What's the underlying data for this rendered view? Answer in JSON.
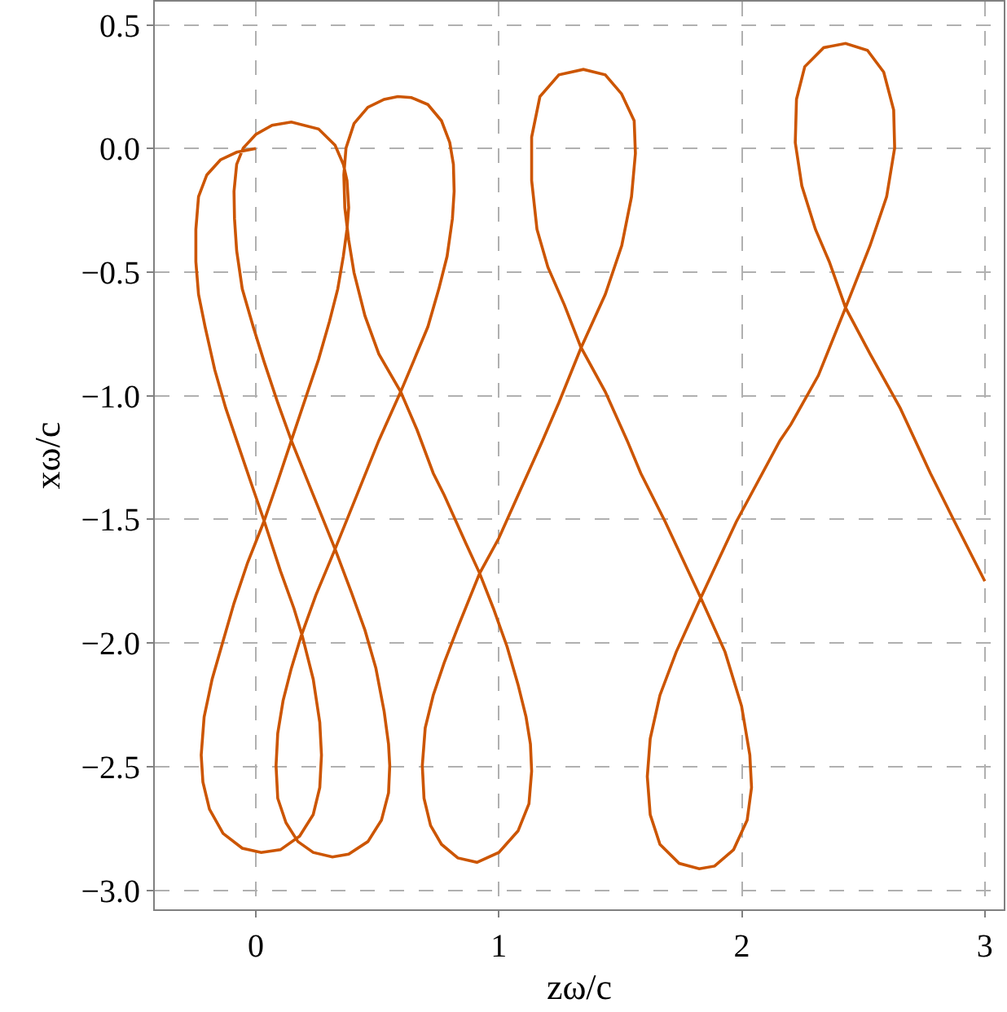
{
  "chart_data": {
    "type": "line",
    "xlabel": "zω/c",
    "ylabel": "xω/c",
    "grid": true,
    "marker": "none",
    "line_style": "solid",
    "xlim": [
      -0.416,
      3.078
    ],
    "ylim": [
      -3.077,
      0.594
    ],
    "xticks": [
      0,
      1,
      2,
      3
    ],
    "yticks": [
      {
        "value": 0.5,
        "label": "0.5"
      },
      {
        "value": 0,
        "label": "0.0"
      },
      {
        "value": -0.5,
        "label": "−0.5"
      },
      {
        "value": -1,
        "label": "−1.0"
      },
      {
        "value": -1.5,
        "label": "−1.5"
      },
      {
        "value": -2,
        "label": "−2.0"
      },
      {
        "value": -2.5,
        "label": "−2.5"
      },
      {
        "value": -3,
        "label": "−3.0"
      }
    ],
    "series": [
      {
        "color": "#cc5500",
        "x": [
          0,
          -0.079,
          -0.146,
          -0.202,
          -0.236,
          -0.247,
          -0.247,
          -0.236,
          -0.209,
          -0.169,
          -0.124,
          -0.079,
          -0.022,
          0.034,
          0.101,
          0.157,
          0.191,
          0.236,
          0.263,
          0.27,
          0.263,
          0.236,
          0.18,
          0.101,
          0.022,
          -0.056,
          -0.135,
          -0.191,
          -0.218,
          -0.225,
          -0.213,
          -0.18,
          -0.135,
          -0.09,
          -0.034,
          0.034,
          0.09,
          0.146,
          0.202,
          0.258,
          0.303,
          0.337,
          0.36,
          0.375,
          0.382,
          0.375,
          0.36,
          0.326,
          0.258,
          0.146,
          0.067,
          0,
          -0.052,
          -0.079,
          -0.09,
          -0.088,
          -0.079,
          -0.056,
          -0.011,
          0.034,
          0.09,
          0.146,
          0.236,
          0.326,
          0.393,
          0.449,
          0.494,
          0.528,
          0.546,
          0.551,
          0.546,
          0.517,
          0.461,
          0.382,
          0.315,
          0.236,
          0.173,
          0.124,
          0.09,
          0.083,
          0.09,
          0.112,
          0.146,
          0.187,
          0.247,
          0.326,
          0.416,
          0.506,
          0.596,
          0.652,
          0.708,
          0.753,
          0.787,
          0.809,
          0.816,
          0.813,
          0.798,
          0.764,
          0.708,
          0.64,
          0.584,
          0.528,
          0.461,
          0.404,
          0.371,
          0.362,
          0.366,
          0.382,
          0.404,
          0.449,
          0.506,
          0.596,
          0.663,
          0.73,
          0.775,
          0.865,
          0.921,
          0.978,
          1.034,
          1.079,
          1.112,
          1.13,
          1.135,
          1.124,
          1.079,
          1.0,
          0.91,
          0.831,
          0.764,
          0.719,
          0.692,
          0.685,
          0.697,
          0.73,
          0.775,
          0.831,
          0.921,
          1.0,
          1.09,
          1.18,
          1.247,
          1.337,
          1.438,
          1.506,
          1.546,
          1.562,
          1.557,
          1.505,
          1.438,
          1.348,
          1.247,
          1.169,
          1.135,
          1.135,
          1.157,
          1.202,
          1.27,
          1.337,
          1.438,
          1.528,
          1.584,
          1.685,
          1.831,
          1.931,
          1.999,
          2.033,
          2.04,
          2.022,
          1.966,
          1.888,
          1.825,
          1.742,
          1.663,
          1.623,
          1.611,
          1.623,
          1.663,
          1.73,
          1.831,
          1.977,
          2.157,
          2.202,
          2.315,
          2.427,
          2.528,
          2.596,
          2.629,
          2.625,
          2.584,
          2.517,
          2.427,
          2.337,
          2.259,
          2.225,
          2.22,
          2.247,
          2.303,
          2.36,
          2.427,
          2.528,
          2.652,
          2.776,
          2.876,
          3.0
        ],
        "values": [
          0,
          -0.015,
          -0.046,
          -0.107,
          -0.195,
          -0.327,
          -0.458,
          -0.59,
          -0.721,
          -0.896,
          -1.05,
          -1.181,
          -1.346,
          -1.506,
          -1.708,
          -1.861,
          -1.971,
          -2.146,
          -2.321,
          -2.453,
          -2.584,
          -2.694,
          -2.781,
          -2.836,
          -2.847,
          -2.83,
          -2.77,
          -2.672,
          -2.562,
          -2.453,
          -2.299,
          -2.146,
          -1.992,
          -1.839,
          -1.675,
          -1.506,
          -1.346,
          -1.181,
          -1.017,
          -0.853,
          -0.699,
          -0.568,
          -0.436,
          -0.327,
          -0.239,
          -0.129,
          -0.064,
          0.013,
          0.079,
          0.107,
          0.094,
          0.057,
          0.002,
          -0.064,
          -0.173,
          -0.283,
          -0.414,
          -0.568,
          -0.721,
          -0.863,
          -1.028,
          -1.181,
          -1.401,
          -1.62,
          -1.795,
          -1.948,
          -2.102,
          -2.277,
          -2.409,
          -2.496,
          -2.606,
          -2.716,
          -2.803,
          -2.854,
          -2.865,
          -2.847,
          -2.803,
          -2.727,
          -2.628,
          -2.496,
          -2.365,
          -2.233,
          -2.102,
          -1.97,
          -1.806,
          -1.62,
          -1.401,
          -1.181,
          -0.984,
          -0.853,
          -0.721,
          -0.568,
          -0.436,
          -0.283,
          -0.173,
          -0.064,
          0.024,
          0.112,
          0.178,
          0.206,
          0.21,
          0.199,
          0.167,
          0.101,
          0.002,
          -0.107,
          -0.239,
          -0.37,
          -0.502,
          -0.677,
          -0.831,
          -0.984,
          -1.137,
          -1.313,
          -1.401,
          -1.598,
          -1.718,
          -1.861,
          -2.015,
          -2.168,
          -2.299,
          -2.409,
          -2.518,
          -2.65,
          -2.76,
          -2.847,
          -2.887,
          -2.869,
          -2.814,
          -2.738,
          -2.628,
          -2.496,
          -2.343,
          -2.211,
          -2.08,
          -1.937,
          -1.718,
          -1.576,
          -1.378,
          -1.181,
          -1.028,
          -0.809,
          -0.59,
          -0.392,
          -0.195,
          -0.02,
          0.112,
          0.221,
          0.298,
          0.32,
          0.298,
          0.21,
          0.046,
          -0.129,
          -0.327,
          -0.48,
          -0.633,
          -0.802,
          -0.984,
          -1.181,
          -1.313,
          -1.51,
          -1.817,
          -2.036,
          -2.255,
          -2.453,
          -2.584,
          -2.716,
          -2.836,
          -2.902,
          -2.913,
          -2.891,
          -2.814,
          -2.694,
          -2.54,
          -2.387,
          -2.211,
          -2.036,
          -1.817,
          -1.51,
          -1.181,
          -1.116,
          -0.918,
          -0.644,
          -0.392,
          -0.195,
          0.002,
          0.156,
          0.309,
          0.397,
          0.425,
          0.408,
          0.331,
          0.199,
          0.024,
          -0.151,
          -0.327,
          -0.458,
          -0.644,
          -0.831,
          -1.05,
          -1.313,
          -1.51,
          -1.75
        ]
      }
    ]
  }
}
